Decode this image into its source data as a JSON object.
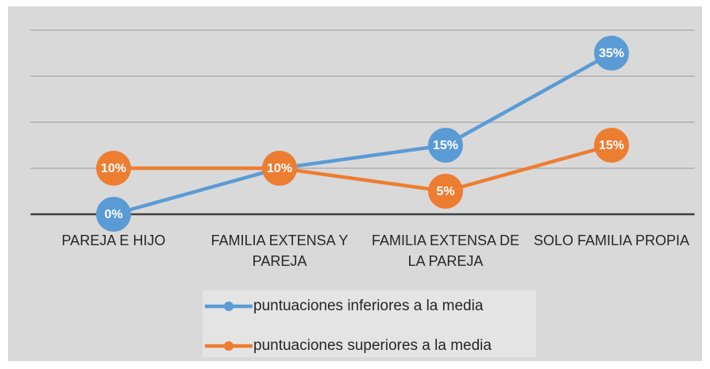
{
  "chart_data": {
    "type": "line",
    "categories": [
      "PAREJA E HIJO",
      "FAMILIA EXTENSA Y PAREJA",
      "FAMILIA EXTENSA DE LA PAREJA",
      "SOLO FAMILIA PROPIA"
    ],
    "series": [
      {
        "name": "puntuaciones inferiores a la media",
        "color": "#5b9bd5",
        "values": [
          0,
          10,
          15,
          35
        ],
        "value_labels": [
          "0%",
          "10%",
          "15%",
          "35%"
        ]
      },
      {
        "name": "puntuaciones superiores a la media",
        "color": "#ed7d31",
        "values": [
          10,
          10,
          5,
          15
        ],
        "value_labels": [
          "10%",
          "10%",
          "5%",
          "15%"
        ]
      }
    ],
    "ylim": [
      0,
      40
    ],
    "yticks": [
      0,
      10,
      20,
      30,
      40
    ],
    "grid": true
  }
}
